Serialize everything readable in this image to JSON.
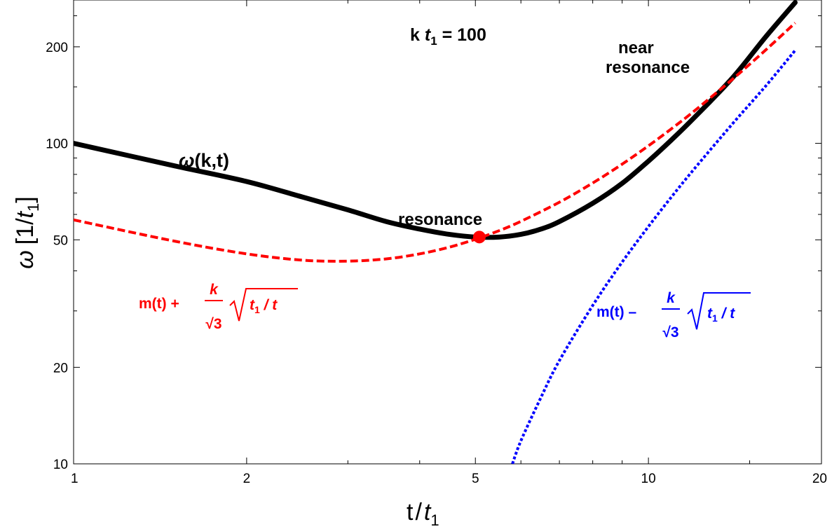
{
  "chart_data": {
    "type": "line",
    "title": "k t₁ = 100",
    "title_parts": {
      "k": "k",
      "t": "t",
      "sub": "1",
      "rest": " = 100"
    },
    "xlabel": "t / t₁",
    "xlabel_parts": {
      "t": "t",
      "slash": "/",
      "t1": "t",
      "sub": "1"
    },
    "ylabel": "ω [1/t₁]",
    "ylabel_parts": {
      "omega": "ω",
      "open": "[1/",
      "t": "t",
      "sub": "1",
      "close": "]"
    },
    "x_scale": "log",
    "y_scale": "log",
    "xlim": [
      1,
      20
    ],
    "ylim": [
      10,
      280
    ],
    "x_ticks": [
      {
        "value": 1,
        "label": "1"
      },
      {
        "value": 2,
        "label": "2"
      },
      {
        "value": 5,
        "label": "5"
      },
      {
        "value": 10,
        "label": "10"
      },
      {
        "value": 20,
        "label": "20"
      }
    ],
    "x_minor_ticks": [
      3,
      4,
      6,
      7,
      8,
      9,
      15
    ],
    "y_ticks": [
      {
        "value": 10,
        "label": "10"
      },
      {
        "value": 20,
        "label": "20"
      },
      {
        "value": 50,
        "label": "50"
      },
      {
        "value": 100,
        "label": "100"
      },
      {
        "value": 200,
        "label": "200"
      }
    ],
    "y_minor_ticks": [
      30,
      40,
      60,
      70,
      80,
      90,
      150,
      250
    ],
    "grid": false,
    "series": [
      {
        "name": "ω(k,t)",
        "color": "#000000",
        "style": "solid",
        "x": [
          1,
          1.5,
          2,
          2.5,
          3,
          3.5,
          4,
          4.5,
          5,
          5.5,
          6,
          6.5,
          7,
          8,
          9,
          10,
          11,
          12,
          14,
          16,
          18
        ],
        "y": [
          100,
          85,
          76,
          68,
          62,
          57,
          54,
          52,
          51,
          51,
          52,
          54,
          57,
          65,
          75,
          88,
          103,
          120,
          160,
          215,
          275
        ]
      },
      {
        "name": "m(t) + k/√3 √(t₁/t)",
        "color": "#ff0000",
        "style": "dashed",
        "x": [
          1,
          1.5,
          2,
          2.5,
          3,
          3.5,
          4,
          4.5,
          5,
          5.5,
          6,
          7,
          8,
          9,
          10,
          11,
          12,
          14,
          16,
          18
        ],
        "y": [
          57.7,
          49.5,
          45.2,
          43.2,
          42.9,
          43.6,
          45.2,
          47.4,
          50.2,
          53.4,
          57.1,
          65.5,
          75.2,
          86.1,
          98.2,
          111.5,
          125.9,
          158.4,
          195.6,
          237.5
        ]
      },
      {
        "name": "m(t) − k/√3 √(t₁/t)",
        "color": "#0000ff",
        "style": "dotted",
        "x": [
          5.8,
          6,
          6.5,
          7,
          8,
          9,
          10,
          11,
          12,
          14,
          16,
          18
        ],
        "y": [
          10,
          11.8,
          16.1,
          21,
          31.2,
          42.6,
          55,
          68.5,
          83,
          115,
          151,
          195
        ]
      }
    ],
    "points": [
      {
        "name": "resonance",
        "x": 5.08,
        "y": 51,
        "color": "#ff0000"
      }
    ],
    "annotations": {
      "omega_label": {
        "omega": "ω",
        "rest": "(k,t)"
      },
      "resonance": "resonance",
      "near": "near",
      "near_resonance": "resonance",
      "red_formula": {
        "head": "m(t) + ",
        "num": "k",
        "den": "√3",
        "root_t": "t",
        "root_sub": "1",
        "root_rest": " / t"
      },
      "blue_formula": {
        "head": "m(t) – ",
        "num": "k",
        "den": "√3",
        "root_t": "t",
        "root_sub": "1",
        "root_rest": " / t"
      }
    }
  }
}
